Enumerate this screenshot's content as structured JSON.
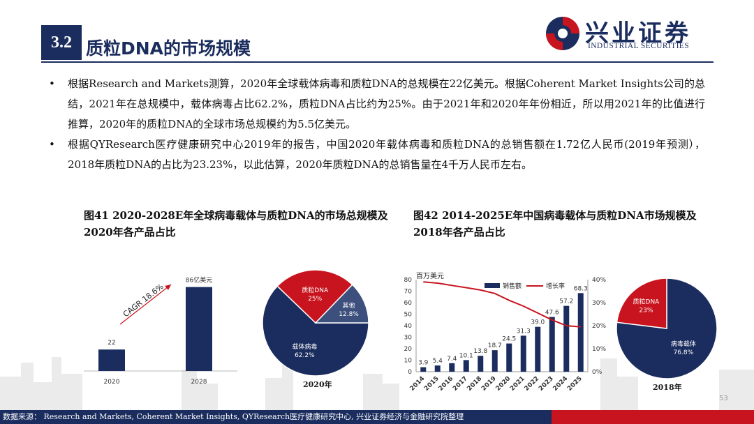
{
  "header": {
    "section_number": "3.2",
    "title": "质粒DNA的市场规模",
    "logo_cn": "兴业证券",
    "logo_en": "INDUSTRIAL SECURITIES"
  },
  "bullets": [
    "根据Research and Markets测算，2020年全球载体病毒和质粒DNA的总规模在22亿美元。根据Coherent Market Insights公司的总结，2021年在总规模中，载体病毒占比62.2%，质粒DNA占比约为25%。由于2021年和2020年年份相近，所以用2021年的比值进行推算，2020年的质粒DNA的全球市场总规模约为5.5亿美元。",
    "根据QYResearch医疗健康研究中心2019年的报告，中国2020年载体病毒和质粒DNA的总销售额在1.72亿人民币(2019年预测），2018年质粒DNA的占比为23.23%，以此估算，2020年质粒DNA的总销售量在4千万人民币左右。"
  ],
  "figure41": {
    "caption": "图41 2020-2028E年全球病毒载体与质粒DNA的市场总规模及2020年各产品占比",
    "pie_label": "2020年"
  },
  "figure42": {
    "caption": "图42 2014-2025E年中国病毒载体与质粒DNA市场规模及2018年各产品占比",
    "pie_label": "2018年"
  },
  "colors": {
    "navy": "#1b2d5e",
    "red": "#c8141e",
    "grey": "#3d4f7c"
  },
  "chart_data": [
    {
      "type": "bar",
      "categories": [
        "2020",
        "2028"
      ],
      "values": [
        22,
        86
      ],
      "data_labels": [
        "22",
        "86亿美元"
      ],
      "annotation": "CAGR 18.6%",
      "ylim": [
        0,
        100
      ]
    },
    {
      "type": "pie",
      "labels": [
        "载体病毒",
        "质粒DNA",
        "其他"
      ],
      "values": [
        62.2,
        25,
        12.8
      ],
      "value_labels": [
        "62.2%",
        "25%",
        "12.8%"
      ],
      "colors": [
        "#1b2d5e",
        "#c8141e",
        "#3d4f7c"
      ]
    },
    {
      "type": "bar",
      "categories": [
        "2014",
        "2015",
        "2016",
        "2017",
        "2018",
        "2019",
        "2020",
        "2021",
        "2022",
        "2023",
        "2024",
        "2025"
      ],
      "series": [
        {
          "name": "销售额",
          "values": [
            3.9,
            5.4,
            7.4,
            10.1,
            13.8,
            18.7,
            24.5,
            31.3,
            39.0,
            47.6,
            57.2,
            68.3
          ]
        },
        {
          "name": "增长率",
          "values": [
            39,
            38.5,
            37.5,
            36.5,
            35.5,
            34,
            31,
            28.5,
            25.5,
            22.5,
            20,
            19.5
          ]
        }
      ],
      "ylabel": "百万美元",
      "ylim": [
        0,
        80
      ],
      "y_ticks": [
        "0",
        "10",
        "20",
        "30",
        "40",
        "50",
        "60",
        "70",
        "80"
      ],
      "y2_ticks": [
        "0%",
        "10%",
        "20%",
        "30%",
        "40%"
      ],
      "y2lim": [
        0,
        40
      ],
      "legend": "top"
    },
    {
      "type": "pie",
      "labels": [
        "病毒载体",
        "质粒DNA"
      ],
      "values": [
        76.8,
        23
      ],
      "value_labels": [
        "76.8%",
        "23%"
      ],
      "colors": [
        "#1b2d5e",
        "#c8141e"
      ]
    }
  ],
  "footer": {
    "source": "数据来源： Research and Markets, Coherent Market Insights, QYResearch医疗健康研究中心, 兴业证券经济与金融研究院整理",
    "page_number": "53"
  }
}
